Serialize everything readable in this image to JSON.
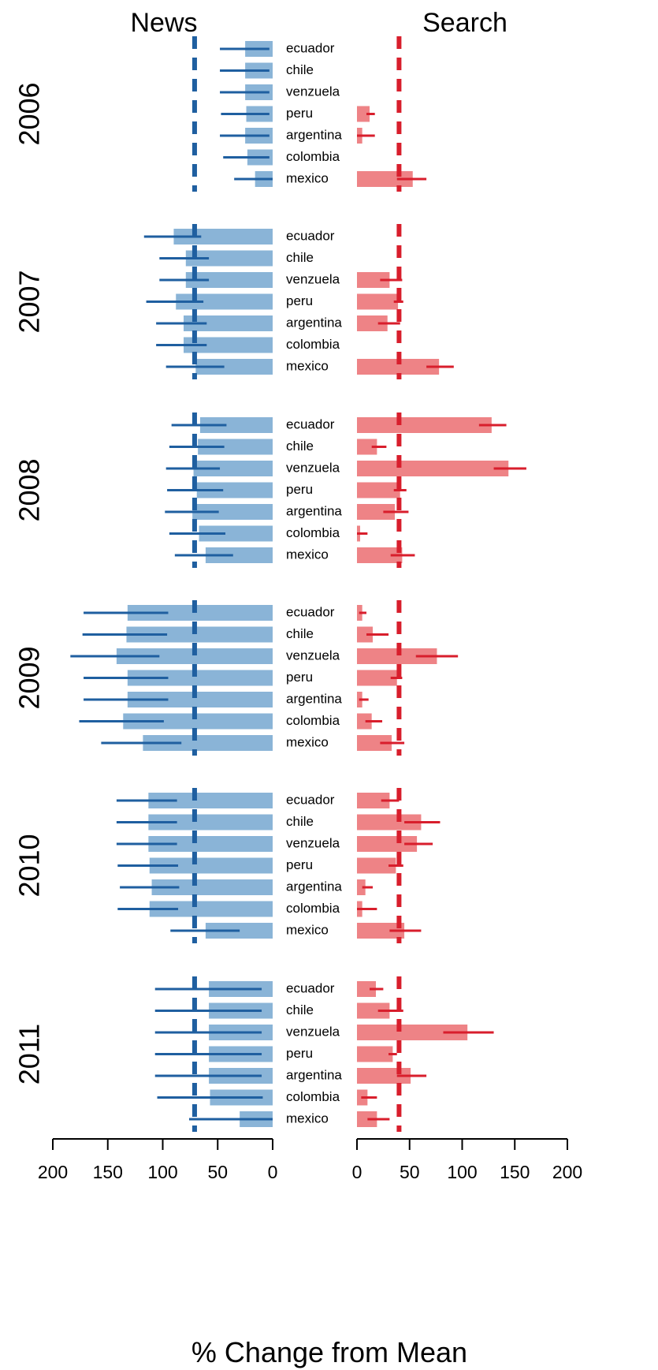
{
  "chart_data": {
    "type": "bar",
    "orientation": "horizontal",
    "panels": [
      "News",
      "Search"
    ],
    "xlabel": "% Change from Mean",
    "xlim": [
      0,
      200
    ],
    "x_ticks": [
      0,
      50,
      100,
      150,
      200
    ],
    "colors": {
      "news_bar": "#8ab4d7",
      "news_line": "#1f5fa0",
      "search_bar": "#ee8386",
      "search_line": "#d81e2c"
    },
    "reference_lines": {
      "news": 71,
      "search": 40
    },
    "countries": [
      "ecuador",
      "chile",
      "venzuela",
      "peru",
      "argentina",
      "colombia",
      "mexico"
    ],
    "years": [
      {
        "year": "2006",
        "news": [
          {
            "value": 25,
            "low": 3,
            "high": 48
          },
          {
            "value": 25,
            "low": 3,
            "high": 48
          },
          {
            "value": 25,
            "low": 3,
            "high": 48
          },
          {
            "value": 24,
            "low": 3,
            "high": 47
          },
          {
            "value": 25,
            "low": 3,
            "high": 48
          },
          {
            "value": 23,
            "low": 3,
            "high": 45
          },
          {
            "value": 16,
            "low": 0,
            "high": 35
          }
        ],
        "search": [
          {
            "value": null,
            "low": null,
            "high": null
          },
          {
            "value": null,
            "low": null,
            "high": null
          },
          {
            "value": null,
            "low": null,
            "high": null
          },
          {
            "value": 12,
            "low": 9,
            "high": 17
          },
          {
            "value": 5,
            "low": 0,
            "high": 17
          },
          {
            "value": null,
            "low": null,
            "high": null
          },
          {
            "value": 53,
            "low": 38,
            "high": 66
          }
        ]
      },
      {
        "year": "2007",
        "news": [
          {
            "value": 90,
            "low": 65,
            "high": 117
          },
          {
            "value": 79,
            "low": 58,
            "high": 103
          },
          {
            "value": 79,
            "low": 58,
            "high": 103
          },
          {
            "value": 88,
            "low": 63,
            "high": 115
          },
          {
            "value": 81,
            "low": 60,
            "high": 106
          },
          {
            "value": 81,
            "low": 60,
            "high": 106
          },
          {
            "value": 70,
            "low": 44,
            "high": 97
          }
        ],
        "search": [
          {
            "value": null,
            "low": null,
            "high": null
          },
          {
            "value": null,
            "low": null,
            "high": null
          },
          {
            "value": 31,
            "low": 22,
            "high": 43
          },
          {
            "value": 39,
            "low": 35,
            "high": 44
          },
          {
            "value": 29,
            "low": 20,
            "high": 41
          },
          {
            "value": null,
            "low": null,
            "high": null
          },
          {
            "value": 78,
            "low": 66,
            "high": 92
          }
        ]
      },
      {
        "year": "2008",
        "news": [
          {
            "value": 66,
            "low": 42,
            "high": 92
          },
          {
            "value": 68,
            "low": 44,
            "high": 94
          },
          {
            "value": 72,
            "low": 48,
            "high": 97
          },
          {
            "value": 69,
            "low": 45,
            "high": 96
          },
          {
            "value": 73,
            "low": 49,
            "high": 98
          },
          {
            "value": 67,
            "low": 43,
            "high": 94
          },
          {
            "value": 61,
            "low": 36,
            "high": 89
          }
        ],
        "search": [
          {
            "value": 128,
            "low": 116,
            "high": 142
          },
          {
            "value": 19,
            "low": 14,
            "high": 28
          },
          {
            "value": 144,
            "low": 130,
            "high": 161
          },
          {
            "value": 41,
            "low": 35,
            "high": 47
          },
          {
            "value": 36,
            "low": 25,
            "high": 49
          },
          {
            "value": 3,
            "low": 0,
            "high": 10
          },
          {
            "value": 43,
            "low": 32,
            "high": 55
          }
        ]
      },
      {
        "year": "2009",
        "news": [
          {
            "value": 132,
            "low": 95,
            "high": 172
          },
          {
            "value": 133,
            "low": 96,
            "high": 173
          },
          {
            "value": 142,
            "low": 103,
            "high": 184
          },
          {
            "value": 132,
            "low": 95,
            "high": 172
          },
          {
            "value": 132,
            "low": 95,
            "high": 172
          },
          {
            "value": 136,
            "low": 99,
            "high": 176
          },
          {
            "value": 118,
            "low": 83,
            "high": 156
          }
        ],
        "search": [
          {
            "value": 5,
            "low": 2,
            "high": 9
          },
          {
            "value": 15,
            "low": 9,
            "high": 30
          },
          {
            "value": 76,
            "low": 56,
            "high": 96
          },
          {
            "value": 38,
            "low": 32,
            "high": 43
          },
          {
            "value": 5,
            "low": 2,
            "high": 11
          },
          {
            "value": 14,
            "low": 8,
            "high": 24
          },
          {
            "value": 33,
            "low": 22,
            "high": 45
          }
        ]
      },
      {
        "year": "2010",
        "news": [
          {
            "value": 113,
            "low": 87,
            "high": 142
          },
          {
            "value": 113,
            "low": 87,
            "high": 142
          },
          {
            "value": 113,
            "low": 87,
            "high": 142
          },
          {
            "value": 112,
            "low": 86,
            "high": 141
          },
          {
            "value": 110,
            "low": 85,
            "high": 139
          },
          {
            "value": 112,
            "low": 86,
            "high": 141
          },
          {
            "value": 61,
            "low": 30,
            "high": 93
          }
        ],
        "search": [
          {
            "value": 31,
            "low": 23,
            "high": 40
          },
          {
            "value": 61,
            "low": 45,
            "high": 79
          },
          {
            "value": 57,
            "low": 45,
            "high": 72
          },
          {
            "value": 37,
            "low": 30,
            "high": 44
          },
          {
            "value": 8,
            "low": 5,
            "high": 15
          },
          {
            "value": 5,
            "low": 0,
            "high": 19
          },
          {
            "value": 45,
            "low": 31,
            "high": 61
          }
        ]
      },
      {
        "year": "2011",
        "news": [
          {
            "value": 58,
            "low": 10,
            "high": 107
          },
          {
            "value": 58,
            "low": 10,
            "high": 107
          },
          {
            "value": 58,
            "low": 10,
            "high": 107
          },
          {
            "value": 58,
            "low": 10,
            "high": 107
          },
          {
            "value": 58,
            "low": 10,
            "high": 107
          },
          {
            "value": 57,
            "low": 9,
            "high": 105
          },
          {
            "value": 30,
            "low": 0,
            "high": 76
          }
        ],
        "search": [
          {
            "value": 18,
            "low": 12,
            "high": 25
          },
          {
            "value": 31,
            "low": 20,
            "high": 44
          },
          {
            "value": 105,
            "low": 82,
            "high": 130
          },
          {
            "value": 34,
            "low": 30,
            "high": 38
          },
          {
            "value": 51,
            "low": 38,
            "high": 66
          },
          {
            "value": 10,
            "low": 4,
            "high": 19
          },
          {
            "value": 19,
            "low": 10,
            "high": 31
          }
        ]
      }
    ]
  }
}
